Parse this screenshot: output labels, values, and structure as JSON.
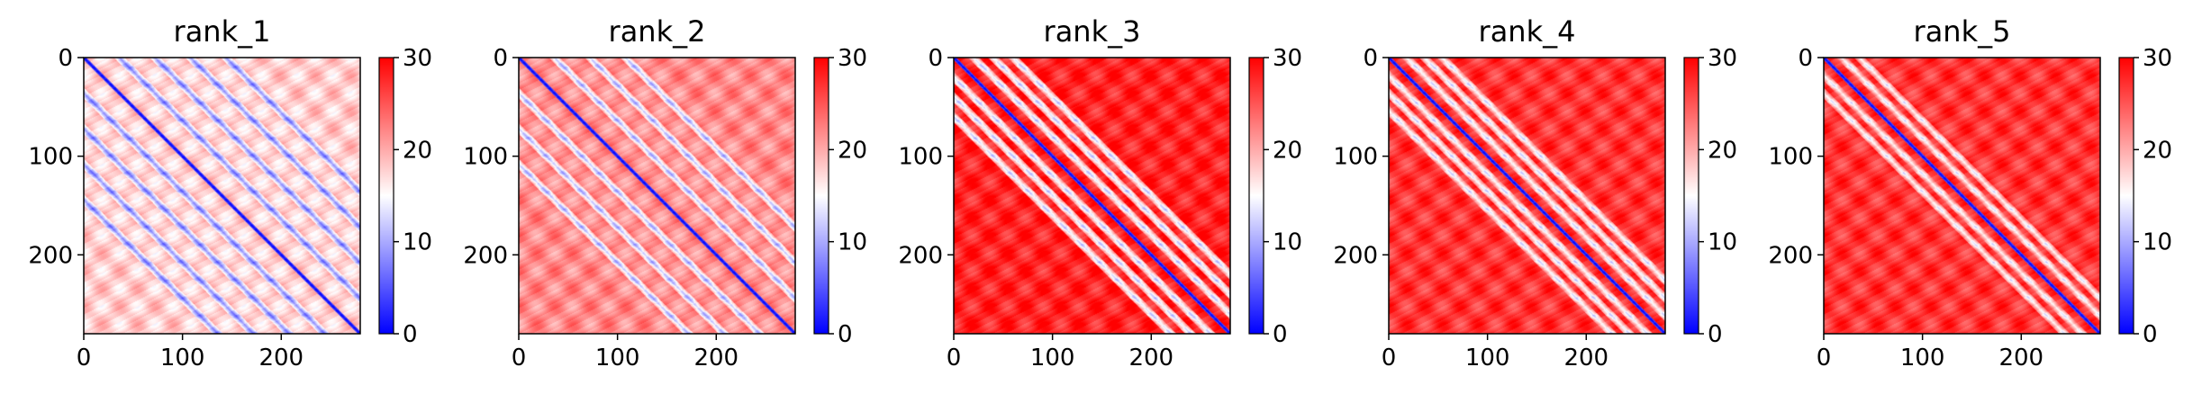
{
  "chart_data": [
    {
      "type": "heatmap",
      "title": "rank_1",
      "x_ticks": [
        0,
        100,
        200
      ],
      "y_ticks": [
        0,
        100,
        200
      ],
      "xlim": [
        0,
        280
      ],
      "ylim": [
        280,
        0
      ],
      "colorbar": {
        "ticks": [
          0,
          10,
          20,
          30
        ],
        "vmin": 0,
        "vmax": 30,
        "colormap": "bwr"
      },
      "pattern": {
        "base_value": 18,
        "diagonal_value": 0,
        "off_diagonal_bands": [
          36,
          72,
          108,
          144
        ],
        "band_value": 5,
        "period": 36
      }
    },
    {
      "type": "heatmap",
      "title": "rank_2",
      "x_ticks": [
        0,
        100,
        200
      ],
      "y_ticks": [
        0,
        100,
        200
      ],
      "xlim": [
        0,
        280
      ],
      "ylim": [
        280,
        0
      ],
      "colorbar": {
        "ticks": [
          0,
          10,
          20,
          30
        ],
        "vmin": 0,
        "vmax": 30,
        "colormap": "bwr"
      },
      "pattern": {
        "base_value": 22,
        "diagonal_value": 0,
        "off_diagonal_bands": [
          36,
          72,
          108
        ],
        "band_value": 8,
        "period": 36
      }
    },
    {
      "type": "heatmap",
      "title": "rank_3",
      "x_ticks": [
        0,
        100,
        200
      ],
      "y_ticks": [
        0,
        100,
        200
      ],
      "xlim": [
        0,
        280
      ],
      "ylim": [
        280,
        0
      ],
      "colorbar": {
        "ticks": [
          0,
          10,
          20,
          30
        ],
        "vmin": 0,
        "vmax": 30,
        "colormap": "bwr"
      },
      "pattern": {
        "base_value": 28,
        "diagonal_value": 0,
        "off_diagonal_bands": [
          20,
          40,
          60
        ],
        "band_value": 10,
        "period": 36
      }
    },
    {
      "type": "heatmap",
      "title": "rank_4",
      "x_ticks": [
        0,
        100,
        200
      ],
      "y_ticks": [
        0,
        100,
        200
      ],
      "xlim": [
        0,
        280
      ],
      "ylim": [
        280,
        0
      ],
      "colorbar": {
        "ticks": [
          0,
          10,
          20,
          30
        ],
        "vmin": 0,
        "vmax": 30,
        "colormap": "bwr"
      },
      "pattern": {
        "base_value": 27,
        "diagonal_value": 0,
        "off_diagonal_bands": [
          18,
          36,
          54
        ],
        "band_value": 11,
        "period": 36
      }
    },
    {
      "type": "heatmap",
      "title": "rank_5",
      "x_ticks": [
        0,
        100,
        200
      ],
      "y_ticks": [
        0,
        100,
        200
      ],
      "xlim": [
        0,
        280
      ],
      "ylim": [
        280,
        0
      ],
      "colorbar": {
        "ticks": [
          0,
          10,
          20,
          30
        ],
        "vmin": 0,
        "vmax": 30,
        "colormap": "bwr"
      },
      "pattern": {
        "base_value": 27,
        "diagonal_value": 0,
        "off_diagonal_bands": [
          18,
          36
        ],
        "band_value": 12,
        "period": 36
      }
    }
  ]
}
